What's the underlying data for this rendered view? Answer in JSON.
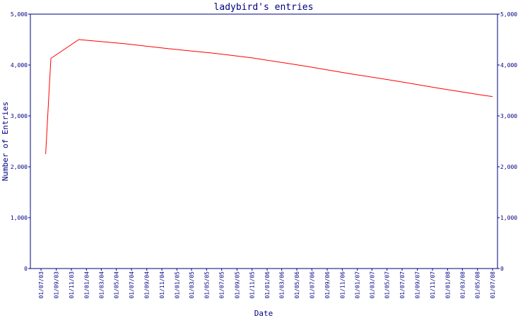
{
  "chart_data": {
    "type": "line",
    "title": "ladybird's entries",
    "xlabel": "Date",
    "ylabel": "Number of Entries",
    "ylim": [
      0,
      5000
    ],
    "y_ticks": [
      "0",
      "1,000",
      "2,000",
      "3,000",
      "4,000",
      "5,000"
    ],
    "x_ticks": [
      "01/07/03",
      "01/09/03",
      "01/11/03",
      "01/01/04",
      "01/03/04",
      "01/05/04",
      "01/07/04",
      "01/09/04",
      "01/11/04",
      "01/01/05",
      "01/03/05",
      "01/05/05",
      "01/07/05",
      "01/09/05",
      "01/11/05",
      "01/01/06",
      "01/03/06",
      "01/05/06",
      "01/07/06",
      "01/09/06",
      "01/11/06",
      "01/01/07",
      "01/03/07",
      "01/05/07",
      "01/07/07",
      "01/09/07",
      "01/11/07",
      "01/01/08",
      "01/03/08",
      "01/05/08",
      "01/07/08"
    ],
    "grid": false,
    "colors": {
      "axis": "#000080",
      "line": "#ff0000"
    },
    "series": [
      {
        "x": [
          "2003-07-20",
          "2003-08-10",
          "2003-12-01",
          "2004-06-01",
          "2004-12-01",
          "2005-06-01",
          "2005-11-01",
          "2006-06-01",
          "2006-12-01",
          "2007-06-01",
          "2007-12-01",
          "2008-06-01",
          "2008-07-01"
        ],
        "values": [
          2250,
          4130,
          4500,
          4420,
          4320,
          4230,
          4140,
          3980,
          3830,
          3690,
          3540,
          3400,
          3380
        ]
      }
    ]
  }
}
